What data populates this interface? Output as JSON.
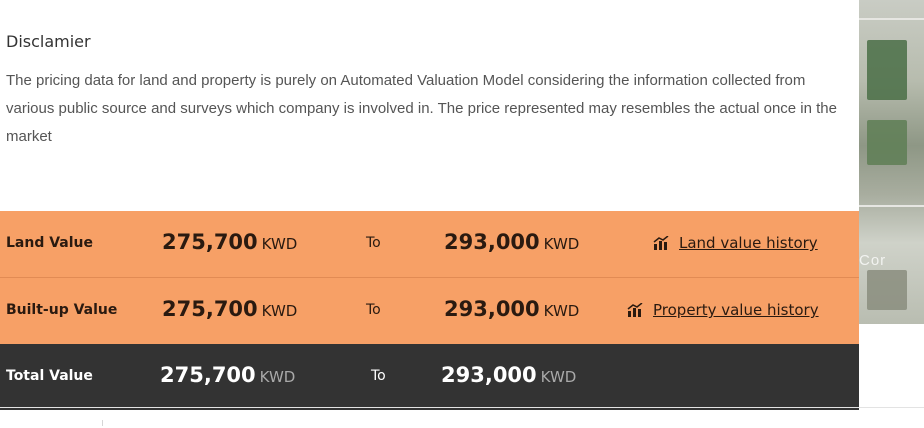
{
  "disclaimer": {
    "title": "Disclamier",
    "text": "The pricing data for land and property is purely on Automated Valuation Model considering the information collected from various public source and surveys which company is involved in. The price represented may resembles the actual once in the market"
  },
  "rows": [
    {
      "label": "Land Value",
      "from_value": "275,700",
      "from_currency": "KWD",
      "to_label": "To",
      "to_value": "293,000",
      "to_currency": "KWD",
      "history_link": "Land value history"
    },
    {
      "label": "Built-up Value",
      "from_value": "275,700",
      "from_currency": "KWD",
      "to_label": "To",
      "to_value": "293,000",
      "to_currency": "KWD",
      "history_link": "Property value history"
    },
    {
      "label": "Total Value",
      "from_value": "275,700",
      "from_currency": "KWD",
      "to_label": "To",
      "to_value": "293,000",
      "to_currency": "KWD"
    }
  ],
  "image": {
    "watermark": "Cor"
  },
  "colors": {
    "orange_row": "#f7a066",
    "dark_row": "#333333"
  },
  "icons": {
    "history": "chart-history-icon"
  }
}
